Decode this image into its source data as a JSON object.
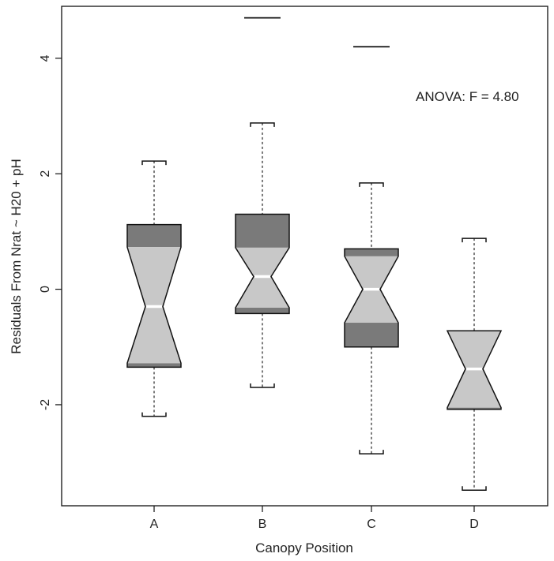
{
  "chart_data": {
    "type": "boxplot",
    "variant": "notched",
    "xlabel": "Canopy Position",
    "ylabel": "Residuals From Nrat ~ H20 + pH",
    "categories": [
      "A",
      "B",
      "C",
      "D"
    ],
    "ylim": [
      -3.75,
      4.9
    ],
    "yticks": [
      -2,
      0,
      2,
      4
    ],
    "ytick_labels": [
      "-2",
      "0",
      "2",
      "4"
    ],
    "grid": false,
    "annotation": "ANOVA: F = 4.80",
    "colors": {
      "box_light": "#c8c8c8",
      "box_dark": "#7a7a7a",
      "median": "#ffffff",
      "outline": "#111111"
    },
    "boxes": [
      {
        "category": "A",
        "whisker_low": -2.2,
        "q1": -1.35,
        "median": -0.3,
        "q3": 1.12,
        "whisker_high": 2.22,
        "notch_low": -1.28,
        "notch_high": 0.73,
        "outliers": []
      },
      {
        "category": "B",
        "whisker_low": -1.7,
        "q1": -0.42,
        "median": 0.22,
        "q3": 1.3,
        "whisker_high": 2.88,
        "notch_low": -0.32,
        "notch_high": 0.72,
        "outliers": [
          4.7
        ]
      },
      {
        "category": "C",
        "whisker_low": -2.85,
        "q1": -1.0,
        "median": 0.0,
        "q3": 0.7,
        "whisker_high": 1.84,
        "notch_low": -0.58,
        "notch_high": 0.57,
        "outliers": [
          4.2
        ]
      },
      {
        "category": "D",
        "whisker_low": -3.48,
        "q1": -2.08,
        "median": -1.38,
        "q3": -0.72,
        "whisker_high": 0.88,
        "notch_low": -2.05,
        "notch_high": -0.72,
        "outliers": []
      }
    ]
  }
}
